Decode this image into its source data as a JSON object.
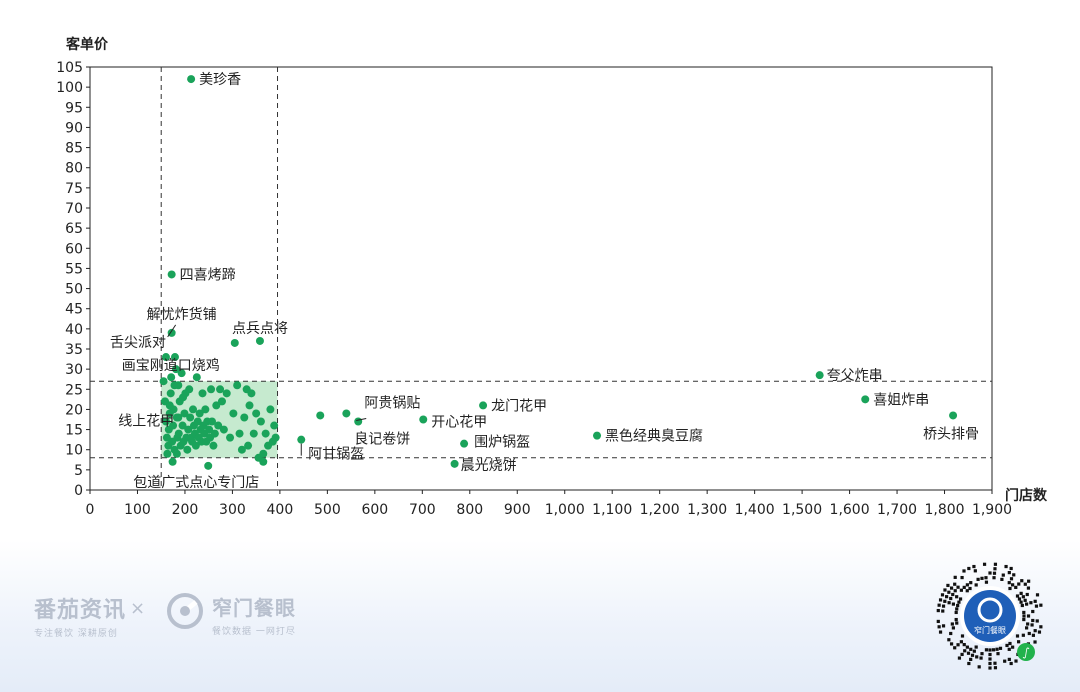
{
  "chart_data": {
    "type": "scatter",
    "ylabel": "客单价",
    "xlabel": "门店数",
    "xlim": [
      0,
      1900
    ],
    "ylim": [
      0,
      105
    ],
    "x_ticks": [
      "0",
      "100",
      "200",
      "300",
      "400",
      "500",
      "600",
      "700",
      "800",
      "900",
      "1,000",
      "1,100",
      "1,200",
      "1,300",
      "1,400",
      "1,500",
      "1,600",
      "1,700",
      "1,800",
      "1,900"
    ],
    "y_ticks": [
      "0",
      "5",
      "10",
      "15",
      "20",
      "25",
      "30",
      "35",
      "40",
      "45",
      "50",
      "55",
      "60",
      "65",
      "70",
      "75",
      "80",
      "85",
      "90",
      "95",
      "100",
      "105"
    ],
    "ref_lines": {
      "x": [
        150,
        395
      ],
      "y": [
        27,
        8
      ]
    },
    "highlight_region": {
      "x": [
        150,
        395
      ],
      "y": [
        8,
        27
      ],
      "color": "#c6eacf"
    },
    "point_color": "#1aa35a",
    "labeled_points": [
      {
        "name": "美珍香",
        "x": 213,
        "y": 102
      },
      {
        "name": "四喜烤蹄",
        "x": 172,
        "y": 53.5
      },
      {
        "name": "解忧炸货铺",
        "x": 172,
        "y": 39
      },
      {
        "name": "舌尖派对",
        "x": 160,
        "y": 33
      },
      {
        "name": "点兵点将",
        "x": 358,
        "y": 37
      },
      {
        "name": "画宝刚道口烧鸡",
        "x": 305,
        "y": 36.5
      },
      {
        "name": "线上花甲",
        "x": 485,
        "y": 18.5
      },
      {
        "name": "阿贵锅贴",
        "x": 540,
        "y": 19
      },
      {
        "name": "良记卷饼",
        "x": 565,
        "y": 17
      },
      {
        "name": "阿甘锅盔",
        "x": 445,
        "y": 12.5
      },
      {
        "name": "包道广式点心专门店",
        "x": 365,
        "y": 7
      },
      {
        "name": "开心花甲",
        "x": 702,
        "y": 17.5
      },
      {
        "name": "龙门花甲",
        "x": 828,
        "y": 21
      },
      {
        "name": "围炉锅盔",
        "x": 788,
        "y": 11.5
      },
      {
        "name": "晨光烧饼",
        "x": 768,
        "y": 6.5
      },
      {
        "name": "黑色经典臭豆腐",
        "x": 1068,
        "y": 13.5
      },
      {
        "name": "夸父炸串",
        "x": 1537,
        "y": 28.5
      },
      {
        "name": "喜姐炸串",
        "x": 1633,
        "y": 22.5
      },
      {
        "name": "桥头排骨",
        "x": 1818,
        "y": 18.5
      }
    ],
    "other_points": [
      [
        155,
        27
      ],
      [
        158,
        22
      ],
      [
        160,
        17
      ],
      [
        162,
        13
      ],
      [
        163,
        9
      ],
      [
        165,
        11
      ],
      [
        166,
        15
      ],
      [
        168,
        19
      ],
      [
        170,
        24
      ],
      [
        171,
        28
      ],
      [
        173,
        12
      ],
      [
        175,
        16
      ],
      [
        176,
        20
      ],
      [
        178,
        26
      ],
      [
        179,
        33
      ],
      [
        181,
        30
      ],
      [
        183,
        9
      ],
      [
        184,
        13
      ],
      [
        186,
        18
      ],
      [
        187,
        14
      ],
      [
        189,
        22
      ],
      [
        191,
        11
      ],
      [
        193,
        29
      ],
      [
        195,
        16
      ],
      [
        197,
        12
      ],
      [
        199,
        19
      ],
      [
        201,
        24
      ],
      [
        203,
        13
      ],
      [
        205,
        10
      ],
      [
        207,
        15
      ],
      [
        209,
        25
      ],
      [
        211,
        18
      ],
      [
        213,
        13
      ],
      [
        215,
        12
      ],
      [
        217,
        20
      ],
      [
        219,
        16
      ],
      [
        221,
        14
      ],
      [
        223,
        11
      ],
      [
        225,
        28
      ],
      [
        227,
        17
      ],
      [
        229,
        13
      ],
      [
        231,
        19
      ],
      [
        233,
        15
      ],
      [
        235,
        12
      ],
      [
        237,
        24
      ],
      [
        239,
        16
      ],
      [
        241,
        14
      ],
      [
        243,
        20
      ],
      [
        245,
        12
      ],
      [
        247,
        17
      ],
      [
        249,
        6
      ],
      [
        251,
        15
      ],
      [
        253,
        13
      ],
      [
        255,
        25
      ],
      [
        257,
        17
      ],
      [
        260,
        11
      ],
      [
        263,
        14
      ],
      [
        266,
        21
      ],
      [
        270,
        16
      ],
      [
        274,
        25
      ],
      [
        278,
        22
      ],
      [
        282,
        15
      ],
      [
        288,
        24
      ],
      [
        295,
        13
      ],
      [
        302,
        19
      ],
      [
        310,
        26
      ],
      [
        315,
        14
      ],
      [
        320,
        10
      ],
      [
        325,
        18
      ],
      [
        330,
        25
      ],
      [
        333,
        11
      ],
      [
        336,
        21
      ],
      [
        340,
        24
      ],
      [
        345,
        14
      ],
      [
        350,
        19
      ],
      [
        355,
        8
      ],
      [
        360,
        17
      ],
      [
        365,
        9
      ],
      [
        370,
        14
      ],
      [
        375,
        11
      ],
      [
        380,
        20
      ],
      [
        385,
        12
      ],
      [
        388,
        16
      ],
      [
        391,
        13
      ],
      [
        174,
        7
      ],
      [
        178,
        10
      ],
      [
        183,
        18
      ],
      [
        186,
        26
      ],
      [
        196,
        23
      ],
      [
        168,
        21
      ]
    ]
  },
  "footer": {
    "brand_a_name": "番茄资讯",
    "brand_a_slogan": "专注餐饮  深耕原创",
    "separator": "×",
    "brand_b_name": "窄门餐眼",
    "brand_b_slogan": "餐饮数据  一网打尽",
    "qr_caption": "窄门餐眼"
  }
}
